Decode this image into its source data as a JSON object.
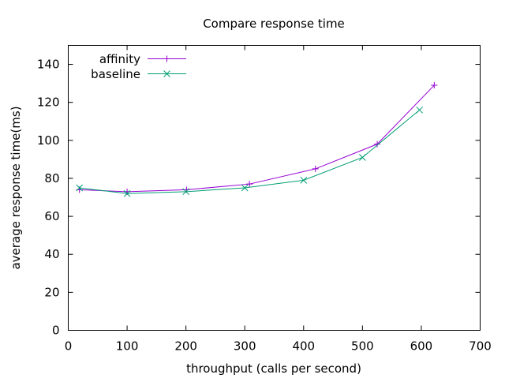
{
  "chart_data": {
    "type": "line",
    "title": "Compare response time",
    "xlabel": "throughput (calls per second)",
    "ylabel": "average response time(ms)",
    "xlim": [
      0,
      700
    ],
    "ylim": [
      0,
      150
    ],
    "xticks": [
      0,
      100,
      200,
      300,
      400,
      500,
      600,
      700
    ],
    "yticks": [
      0,
      20,
      40,
      60,
      80,
      100,
      120,
      140
    ],
    "grid": false,
    "legend_position": "top-left",
    "series": [
      {
        "name": "affinity",
        "color": "#9400d3",
        "marker": "plus",
        "x": [
          19,
          100,
          201,
          308,
          420,
          525,
          622
        ],
        "y": [
          74,
          73,
          74,
          77,
          85,
          98,
          129
        ]
      },
      {
        "name": "baseline",
        "color": "#009e73",
        "marker": "cross",
        "x": [
          19,
          100,
          200,
          300,
          400,
          500,
          597
        ],
        "y": [
          75,
          72,
          73,
          75,
          79,
          91,
          116
        ]
      }
    ]
  }
}
